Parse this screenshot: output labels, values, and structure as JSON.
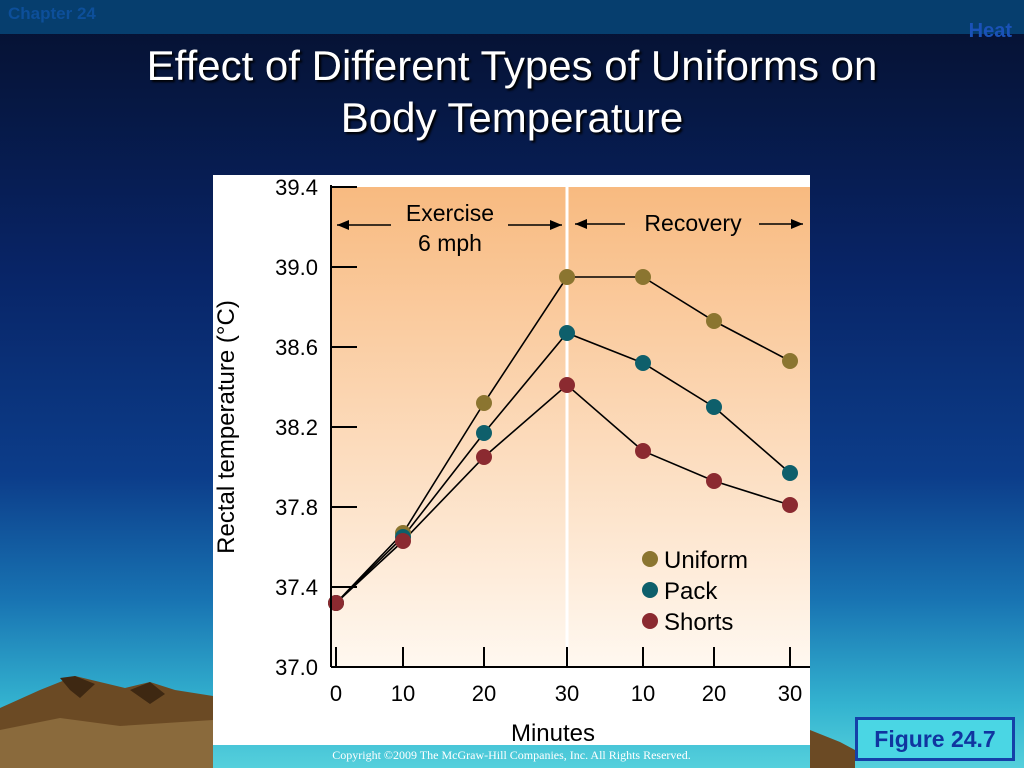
{
  "header": {
    "chapter": "Chapter 24",
    "section": "Heat"
  },
  "slide": {
    "title_line1": "Effect of Different Types of Uniforms on",
    "title_line2": "Body Temperature",
    "figure_label": "Figure 24.7",
    "copyright": "Copyright ©2009 The McGraw-Hill Companies, Inc. All Rights Reserved."
  },
  "colors": {
    "uniform": "#8b7530",
    "pack": "#0e5f6b",
    "shorts": "#8b2a30",
    "bg_top": "#f8ba80",
    "bg_bottom": "#fff8f0"
  },
  "chart_data": {
    "type": "line",
    "xlabel": "Minutes",
    "ylabel": "Rectal temperature (°C)",
    "x_tick_labels": [
      "0",
      "10",
      "20",
      "30",
      "10",
      "20",
      "30"
    ],
    "ylim": [
      37.0,
      39.4
    ],
    "y_ticks": [
      "37.0",
      "37.4",
      "37.8",
      "38.2",
      "38.6",
      "39.0",
      "39.4"
    ],
    "phases": [
      {
        "label_line1": "Exercise",
        "label_line2": "6 mph"
      },
      {
        "label_line1": "Recovery",
        "label_line2": ""
      }
    ],
    "legend_placement": "bottom-right",
    "grid": false,
    "series": [
      {
        "name": "Uniform",
        "values": [
          37.32,
          37.67,
          38.32,
          38.95,
          38.95,
          38.73,
          38.53
        ]
      },
      {
        "name": "Pack",
        "values": [
          37.32,
          37.65,
          38.17,
          38.67,
          38.52,
          38.3,
          37.97
        ]
      },
      {
        "name": "Shorts",
        "values": [
          37.32,
          37.63,
          38.05,
          38.41,
          38.08,
          37.93,
          37.81
        ]
      }
    ]
  }
}
